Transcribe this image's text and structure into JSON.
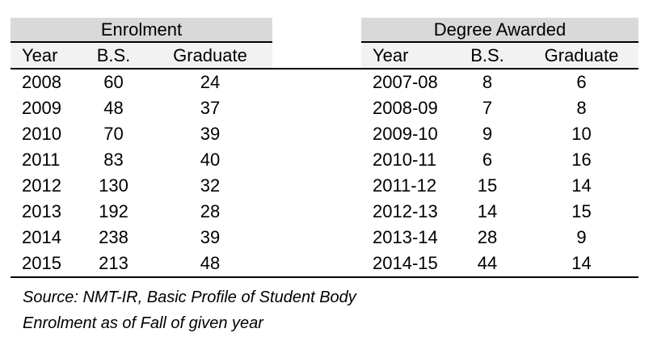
{
  "chart_data": [
    {
      "type": "table",
      "title": "Enrolment",
      "columns": [
        "Year",
        "B.S.",
        "Graduate"
      ],
      "rows": [
        [
          "2008",
          "60",
          "24"
        ],
        [
          "2009",
          "48",
          "37"
        ],
        [
          "2010",
          "70",
          "39"
        ],
        [
          "2011",
          "83",
          "40"
        ],
        [
          "2012",
          "130",
          "32"
        ],
        [
          "2013",
          "192",
          "28"
        ],
        [
          "2014",
          "238",
          "39"
        ],
        [
          "2015",
          "213",
          "48"
        ]
      ]
    },
    {
      "type": "table",
      "title": "Degree Awarded",
      "columns": [
        "Year",
        "B.S.",
        "Graduate"
      ],
      "rows": [
        [
          "2007-08",
          "8",
          "6"
        ],
        [
          "2008-09",
          "7",
          "8"
        ],
        [
          "2009-10",
          "9",
          "10"
        ],
        [
          "2010-11",
          "6",
          "16"
        ],
        [
          "2011-12",
          "15",
          "14"
        ],
        [
          "2012-13",
          "14",
          "15"
        ],
        [
          "2013-14",
          "28",
          "9"
        ],
        [
          "2014-15",
          "44",
          "14"
        ]
      ]
    }
  ],
  "footnotes": [
    "Source: NMT-IR, Basic Profile of Student Body",
    "Enrolment as of Fall of given year"
  ],
  "colors": {
    "title_bg": "#d9d9d9",
    "header_bg": "#f2f2f2",
    "rule": "#000000",
    "text": "#000000",
    "page_bg": "#ffffff"
  }
}
